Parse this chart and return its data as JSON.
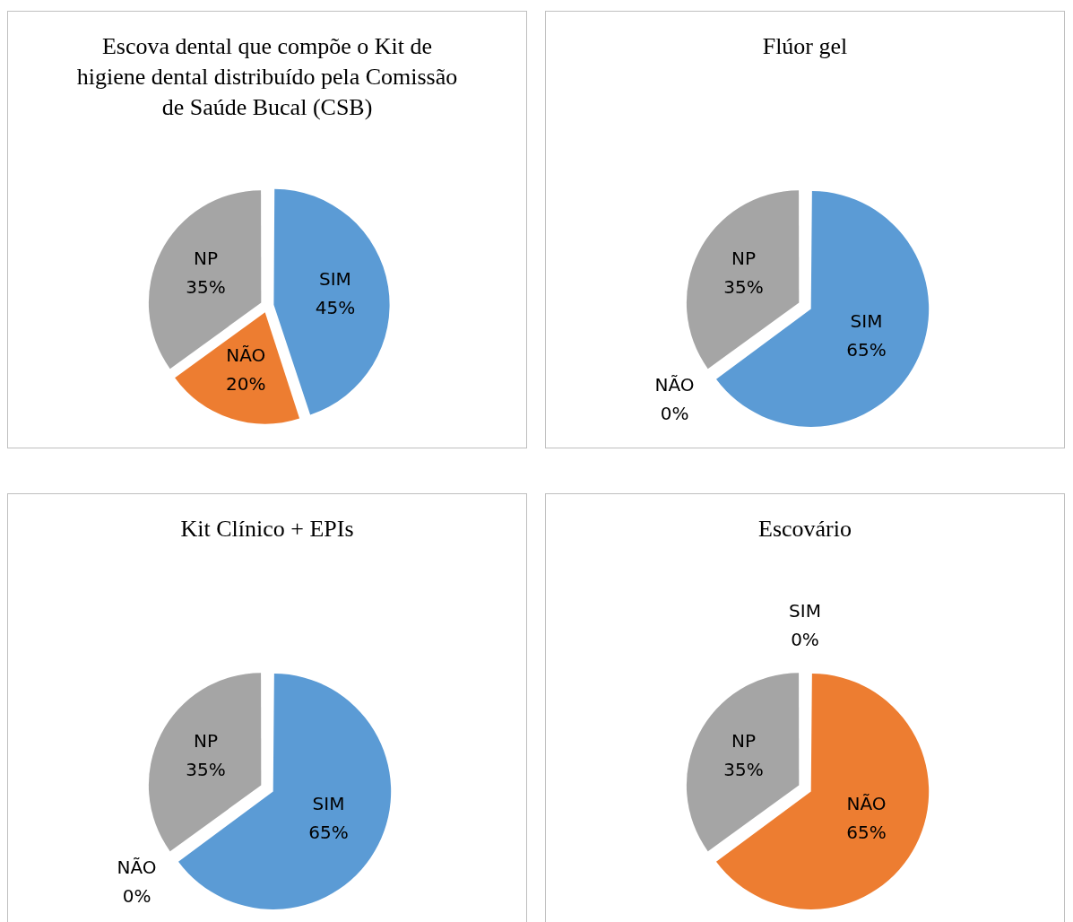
{
  "chart_data": [
    {
      "type": "pie",
      "title": "Escova dental que compõe o Kit de higiene dental distribuído pela Comissão de Saúde Bucal (CSB)",
      "categories": [
        "SIM",
        "NÃO",
        "NP"
      ],
      "values": [
        45,
        20,
        35
      ],
      "value_labels": [
        "45%",
        "20%",
        "35%"
      ],
      "colors": [
        "#5b9bd5",
        "#ed7d31",
        "#a5a5a5"
      ],
      "legend": false
    },
    {
      "type": "pie",
      "title": "Flúor gel",
      "categories": [
        "SIM",
        "NÃO",
        "NP"
      ],
      "values": [
        65,
        0,
        35
      ],
      "value_labels": [
        "65%",
        "0%",
        "35%"
      ],
      "colors": [
        "#5b9bd5",
        "#ed7d31",
        "#a5a5a5"
      ],
      "legend": false
    },
    {
      "type": "pie",
      "title": "Kit Clínico + EPIs",
      "categories": [
        "SIM",
        "NÃO",
        "NP"
      ],
      "values": [
        65,
        0,
        35
      ],
      "value_labels": [
        "65%",
        "0%",
        "35%"
      ],
      "colors": [
        "#5b9bd5",
        "#ed7d31",
        "#a5a5a5"
      ],
      "legend": false
    },
    {
      "type": "pie",
      "title": "Escovário",
      "categories": [
        "SIM",
        "NÃO",
        "NP"
      ],
      "values": [
        0,
        65,
        35
      ],
      "value_labels": [
        "0%",
        "65%",
        "35%"
      ],
      "colors": [
        "#5b9bd5",
        "#ed7d31",
        "#a5a5a5"
      ],
      "legend": false
    }
  ]
}
